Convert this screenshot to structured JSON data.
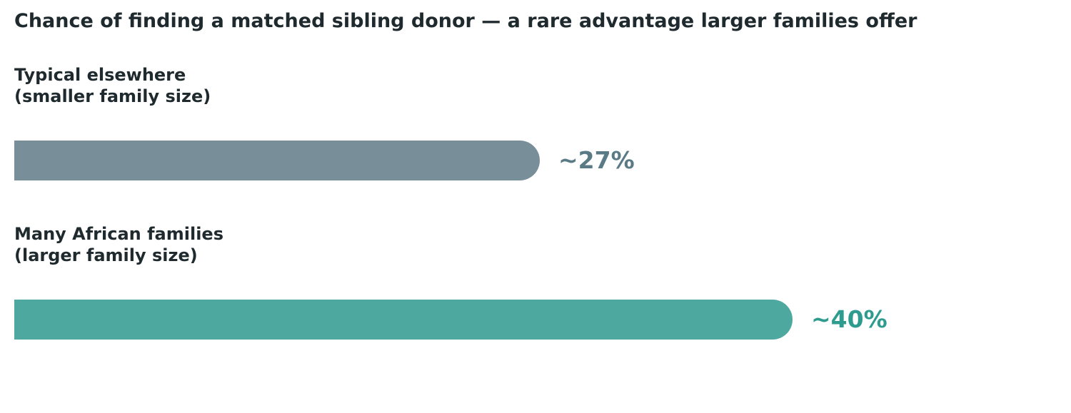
{
  "chart_data": {
    "type": "bar",
    "orientation": "horizontal",
    "title": "Chance of finding a matched sibling donor — a rare advantage larger families offer",
    "xlabel": "",
    "ylabel": "",
    "categories": [
      {
        "line1": "Typical elsewhere",
        "line2": "(smaller family size)"
      },
      {
        "line1": "Many African families",
        "line2": "(larger family size)"
      }
    ],
    "values": [
      27,
      40
    ],
    "value_labels": [
      "~27%",
      "~40%"
    ],
    "bar_colors": [
      "#788f99",
      "#4da99f"
    ],
    "label_colors": [
      "#5a7a86",
      "#2e9b8f"
    ],
    "xlim": [
      0,
      40
    ],
    "grid": false
  }
}
